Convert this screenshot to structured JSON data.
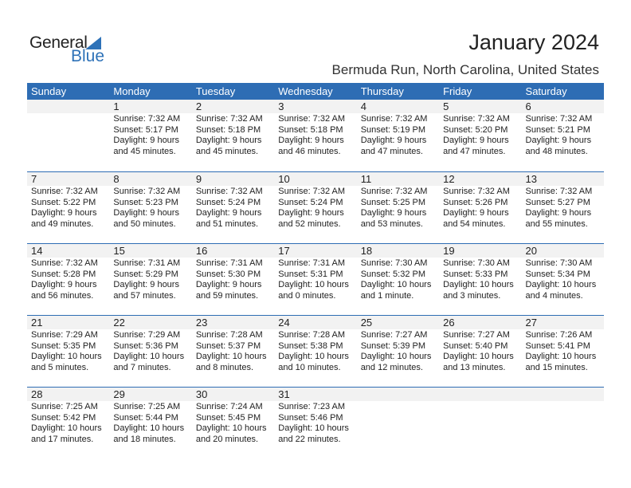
{
  "logo": {
    "general": "General",
    "blue": "Blue"
  },
  "title": "January 2024",
  "location": "Bermuda Run, North Carolina, United States",
  "colors": {
    "header": "#2e6db4",
    "logo_blue": "#2e72b8",
    "day_strip": "#f2f2f2"
  },
  "weekdays": [
    "Sunday",
    "Monday",
    "Tuesday",
    "Wednesday",
    "Thursday",
    "Friday",
    "Saturday"
  ],
  "weeks": [
    [
      null,
      {
        "day": "1",
        "sunrise": "Sunrise: 7:32 AM",
        "sunset": "Sunset: 5:17 PM",
        "daylight": "Daylight: 9 hours",
        "minutes": "and 45 minutes."
      },
      {
        "day": "2",
        "sunrise": "Sunrise: 7:32 AM",
        "sunset": "Sunset: 5:18 PM",
        "daylight": "Daylight: 9 hours",
        "minutes": "and 45 minutes."
      },
      {
        "day": "3",
        "sunrise": "Sunrise: 7:32 AM",
        "sunset": "Sunset: 5:18 PM",
        "daylight": "Daylight: 9 hours",
        "minutes": "and 46 minutes."
      },
      {
        "day": "4",
        "sunrise": "Sunrise: 7:32 AM",
        "sunset": "Sunset: 5:19 PM",
        "daylight": "Daylight: 9 hours",
        "minutes": "and 47 minutes."
      },
      {
        "day": "5",
        "sunrise": "Sunrise: 7:32 AM",
        "sunset": "Sunset: 5:20 PM",
        "daylight": "Daylight: 9 hours",
        "minutes": "and 47 minutes."
      },
      {
        "day": "6",
        "sunrise": "Sunrise: 7:32 AM",
        "sunset": "Sunset: 5:21 PM",
        "daylight": "Daylight: 9 hours",
        "minutes": "and 48 minutes."
      }
    ],
    [
      {
        "day": "7",
        "sunrise": "Sunrise: 7:32 AM",
        "sunset": "Sunset: 5:22 PM",
        "daylight": "Daylight: 9 hours",
        "minutes": "and 49 minutes."
      },
      {
        "day": "8",
        "sunrise": "Sunrise: 7:32 AM",
        "sunset": "Sunset: 5:23 PM",
        "daylight": "Daylight: 9 hours",
        "minutes": "and 50 minutes."
      },
      {
        "day": "9",
        "sunrise": "Sunrise: 7:32 AM",
        "sunset": "Sunset: 5:24 PM",
        "daylight": "Daylight: 9 hours",
        "minutes": "and 51 minutes."
      },
      {
        "day": "10",
        "sunrise": "Sunrise: 7:32 AM",
        "sunset": "Sunset: 5:24 PM",
        "daylight": "Daylight: 9 hours",
        "minutes": "and 52 minutes."
      },
      {
        "day": "11",
        "sunrise": "Sunrise: 7:32 AM",
        "sunset": "Sunset: 5:25 PM",
        "daylight": "Daylight: 9 hours",
        "minutes": "and 53 minutes."
      },
      {
        "day": "12",
        "sunrise": "Sunrise: 7:32 AM",
        "sunset": "Sunset: 5:26 PM",
        "daylight": "Daylight: 9 hours",
        "minutes": "and 54 minutes."
      },
      {
        "day": "13",
        "sunrise": "Sunrise: 7:32 AM",
        "sunset": "Sunset: 5:27 PM",
        "daylight": "Daylight: 9 hours",
        "minutes": "and 55 minutes."
      }
    ],
    [
      {
        "day": "14",
        "sunrise": "Sunrise: 7:32 AM",
        "sunset": "Sunset: 5:28 PM",
        "daylight": "Daylight: 9 hours",
        "minutes": "and 56 minutes."
      },
      {
        "day": "15",
        "sunrise": "Sunrise: 7:31 AM",
        "sunset": "Sunset: 5:29 PM",
        "daylight": "Daylight: 9 hours",
        "minutes": "and 57 minutes."
      },
      {
        "day": "16",
        "sunrise": "Sunrise: 7:31 AM",
        "sunset": "Sunset: 5:30 PM",
        "daylight": "Daylight: 9 hours",
        "minutes": "and 59 minutes."
      },
      {
        "day": "17",
        "sunrise": "Sunrise: 7:31 AM",
        "sunset": "Sunset: 5:31 PM",
        "daylight": "Daylight: 10 hours",
        "minutes": "and 0 minutes."
      },
      {
        "day": "18",
        "sunrise": "Sunrise: 7:30 AM",
        "sunset": "Sunset: 5:32 PM",
        "daylight": "Daylight: 10 hours",
        "minutes": "and 1 minute."
      },
      {
        "day": "19",
        "sunrise": "Sunrise: 7:30 AM",
        "sunset": "Sunset: 5:33 PM",
        "daylight": "Daylight: 10 hours",
        "minutes": "and 3 minutes."
      },
      {
        "day": "20",
        "sunrise": "Sunrise: 7:30 AM",
        "sunset": "Sunset: 5:34 PM",
        "daylight": "Daylight: 10 hours",
        "minutes": "and 4 minutes."
      }
    ],
    [
      {
        "day": "21",
        "sunrise": "Sunrise: 7:29 AM",
        "sunset": "Sunset: 5:35 PM",
        "daylight": "Daylight: 10 hours",
        "minutes": "and 5 minutes."
      },
      {
        "day": "22",
        "sunrise": "Sunrise: 7:29 AM",
        "sunset": "Sunset: 5:36 PM",
        "daylight": "Daylight: 10 hours",
        "minutes": "and 7 minutes."
      },
      {
        "day": "23",
        "sunrise": "Sunrise: 7:28 AM",
        "sunset": "Sunset: 5:37 PM",
        "daylight": "Daylight: 10 hours",
        "minutes": "and 8 minutes."
      },
      {
        "day": "24",
        "sunrise": "Sunrise: 7:28 AM",
        "sunset": "Sunset: 5:38 PM",
        "daylight": "Daylight: 10 hours",
        "minutes": "and 10 minutes."
      },
      {
        "day": "25",
        "sunrise": "Sunrise: 7:27 AM",
        "sunset": "Sunset: 5:39 PM",
        "daylight": "Daylight: 10 hours",
        "minutes": "and 12 minutes."
      },
      {
        "day": "26",
        "sunrise": "Sunrise: 7:27 AM",
        "sunset": "Sunset: 5:40 PM",
        "daylight": "Daylight: 10 hours",
        "minutes": "and 13 minutes."
      },
      {
        "day": "27",
        "sunrise": "Sunrise: 7:26 AM",
        "sunset": "Sunset: 5:41 PM",
        "daylight": "Daylight: 10 hours",
        "minutes": "and 15 minutes."
      }
    ],
    [
      {
        "day": "28",
        "sunrise": "Sunrise: 7:25 AM",
        "sunset": "Sunset: 5:42 PM",
        "daylight": "Daylight: 10 hours",
        "minutes": "and 17 minutes."
      },
      {
        "day": "29",
        "sunrise": "Sunrise: 7:25 AM",
        "sunset": "Sunset: 5:44 PM",
        "daylight": "Daylight: 10 hours",
        "minutes": "and 18 minutes."
      },
      {
        "day": "30",
        "sunrise": "Sunrise: 7:24 AM",
        "sunset": "Sunset: 5:45 PM",
        "daylight": "Daylight: 10 hours",
        "minutes": "and 20 minutes."
      },
      {
        "day": "31",
        "sunrise": "Sunrise: 7:23 AM",
        "sunset": "Sunset: 5:46 PM",
        "daylight": "Daylight: 10 hours",
        "minutes": "and 22 minutes."
      },
      null,
      null,
      null
    ]
  ]
}
